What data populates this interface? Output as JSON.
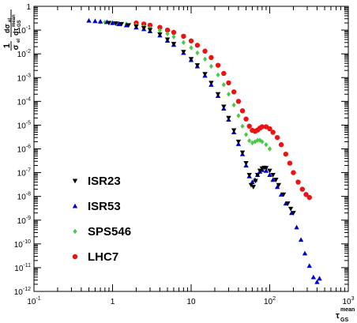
{
  "chart_data": {
    "type": "scatter",
    "title": "",
    "xscale": "log",
    "yscale": "log",
    "xlim": [
      0.1,
      1000
    ],
    "ylim": [
      1e-12,
      1
    ],
    "grid": false,
    "legend_position": "bottom-left",
    "xlabel": {
      "symbol": "τ",
      "superscript": "mean",
      "subscript": "GS"
    },
    "ylabel": {
      "prefix_num": "1",
      "prefix_den": "σ",
      "prefix_den_sub": "el",
      "deriv_num": "dσ",
      "deriv_num_sub": "el",
      "deriv_den": "dτ",
      "deriv_den_sup": "mean",
      "deriv_den_sub": "GS"
    },
    "x_major_ticks": [
      {
        "value": 0.1,
        "mantissa": "10",
        "exp": "-1"
      },
      {
        "value": 1,
        "mantissa": "1",
        "exp": ""
      },
      {
        "value": 10,
        "mantissa": "10",
        "exp": ""
      },
      {
        "value": 100,
        "mantissa": "10",
        "exp": "2"
      },
      {
        "value": 1000,
        "mantissa": "10",
        "exp": "3"
      }
    ],
    "y_major_ticks": [
      {
        "value": 1,
        "mantissa": "1",
        "exp": ""
      },
      {
        "value": 0.1,
        "mantissa": "10",
        "exp": "-1"
      },
      {
        "value": 0.01,
        "mantissa": "10",
        "exp": "-2"
      },
      {
        "value": 0.001,
        "mantissa": "10",
        "exp": "-3"
      },
      {
        "value": 0.0001,
        "mantissa": "10",
        "exp": "-4"
      },
      {
        "value": 1e-05,
        "mantissa": "10",
        "exp": "-5"
      },
      {
        "value": 1e-06,
        "mantissa": "10",
        "exp": "-6"
      },
      {
        "value": 1e-07,
        "mantissa": "10",
        "exp": "-7"
      },
      {
        "value": 1e-08,
        "mantissa": "10",
        "exp": "-8"
      },
      {
        "value": 1e-09,
        "mantissa": "10",
        "exp": "-9"
      },
      {
        "value": 1e-10,
        "mantissa": "10",
        "exp": "-10"
      },
      {
        "value": 1e-11,
        "mantissa": "10",
        "exp": "-11"
      },
      {
        "value": 1e-12,
        "mantissa": "10",
        "exp": "-12"
      }
    ],
    "series": [
      {
        "name": "ISR23",
        "marker": "triangle-down",
        "color": "#000000",
        "points": [
          [
            0.9,
            0.2
          ],
          [
            1.1,
            0.19
          ],
          [
            1.3,
            0.18
          ],
          [
            1.6,
            0.16
          ],
          [
            2,
            0.14
          ],
          [
            2.5,
            0.12
          ],
          [
            3,
            0.1
          ],
          [
            4,
            0.065
          ],
          [
            5,
            0.04
          ],
          [
            6,
            0.026
          ],
          [
            8,
            0.012
          ],
          [
            10,
            0.006
          ],
          [
            12,
            0.0033
          ],
          [
            15,
            0.0014
          ],
          [
            18,
            0.0006
          ],
          [
            22,
            0.0002
          ],
          [
            26,
            6e-05
          ],
          [
            30,
            2e-05
          ],
          [
            35,
            6e-06
          ],
          [
            40,
            2e-06
          ],
          [
            45,
            7e-07
          ],
          [
            50,
            2.5e-07
          ],
          [
            55,
            8e-08
          ],
          [
            58,
            3e-08
          ],
          [
            62,
            2.5e-08
          ],
          [
            66,
            4.5e-08
          ],
          [
            70,
            8e-08
          ],
          [
            75,
            1.2e-07
          ],
          [
            80,
            1.5e-07
          ],
          [
            85,
            1.6e-07
          ],
          [
            90,
            1.55e-07
          ],
          [
            100,
            1.2e-07
          ],
          [
            110,
            8e-08
          ],
          [
            120,
            5e-08
          ],
          [
            130,
            3e-08
          ],
          [
            150,
            1.2e-08
          ],
          [
            170,
            5e-09
          ],
          [
            185,
            3e-09
          ],
          [
            200,
            2e-09
          ]
        ]
      },
      {
        "name": "ISR53",
        "marker": "triangle-up",
        "color": "#0000cc",
        "points": [
          [
            0.5,
            0.25
          ],
          [
            0.6,
            0.24
          ],
          [
            0.7,
            0.23
          ],
          [
            0.85,
            0.22
          ],
          [
            1,
            0.2
          ],
          [
            1.2,
            0.18
          ],
          [
            1.5,
            0.16
          ],
          [
            2,
            0.13
          ],
          [
            2.5,
            0.11
          ],
          [
            3,
            0.09
          ],
          [
            4,
            0.06
          ],
          [
            5,
            0.036
          ],
          [
            6,
            0.024
          ],
          [
            8,
            0.011
          ],
          [
            10,
            0.0055
          ],
          [
            12,
            0.003
          ],
          [
            15,
            0.0012
          ],
          [
            18,
            0.0005
          ],
          [
            22,
            0.00017
          ],
          [
            26,
            5e-05
          ],
          [
            30,
            1.7e-05
          ],
          [
            35,
            5e-06
          ],
          [
            40,
            1.6e-06
          ],
          [
            45,
            6e-07
          ],
          [
            50,
            2e-07
          ],
          [
            55,
            7e-08
          ],
          [
            60,
            4e-08
          ],
          [
            65,
            5e-08
          ],
          [
            70,
            8e-08
          ],
          [
            75,
            1.1e-07
          ],
          [
            80,
            1.3e-07
          ],
          [
            90,
            1.2e-07
          ],
          [
            100,
            8e-08
          ],
          [
            110,
            5e-08
          ],
          [
            125,
            2.5e-08
          ],
          [
            140,
            1.2e-08
          ],
          [
            160,
            5e-09
          ],
          [
            190,
            2e-09
          ],
          [
            220,
            5e-10
          ],
          [
            250,
            1.5e-10
          ],
          [
            280,
            4e-11
          ],
          [
            320,
            1.2e-11
          ],
          [
            360,
            4e-12
          ],
          [
            400,
            2.5e-12
          ],
          [
            430,
            3.5e-12
          ]
        ]
      },
      {
        "name": "SPS546",
        "marker": "diamond",
        "color": "#44cc44",
        "points": [
          [
            0.7,
            0.22
          ],
          [
            0.8,
            0.215
          ],
          [
            1,
            0.2
          ],
          [
            1.2,
            0.19
          ],
          [
            1.5,
            0.18
          ],
          [
            2,
            0.16
          ],
          [
            2.5,
            0.14
          ],
          [
            3,
            0.12
          ],
          [
            4,
            0.095
          ],
          [
            5,
            0.07
          ],
          [
            6,
            0.052
          ],
          [
            8,
            0.03
          ],
          [
            10,
            0.018
          ],
          [
            12,
            0.011
          ],
          [
            15,
            0.006
          ],
          [
            18,
            0.003
          ],
          [
            22,
            0.0013
          ],
          [
            26,
            0.0005
          ],
          [
            30,
            0.0002
          ],
          [
            35,
            7e-05
          ],
          [
            40,
            2.5e-05
          ],
          [
            45,
            9e-06
          ],
          [
            50,
            4e-06
          ],
          [
            55,
            2.2e-06
          ],
          [
            60,
            1.8e-06
          ],
          [
            65,
            2e-06
          ],
          [
            70,
            2.3e-06
          ],
          [
            75,
            2.3e-06
          ],
          [
            80,
            2e-06
          ],
          [
            90,
            1.5e-06
          ],
          [
            100,
            1e-06
          ]
        ]
      },
      {
        "name": "LHC7",
        "marker": "circle",
        "color": "#ee1111",
        "points": [
          [
            2,
            0.2
          ],
          [
            2.5,
            0.18
          ],
          [
            3,
            0.16
          ],
          [
            4,
            0.13
          ],
          [
            5,
            0.1
          ],
          [
            6,
            0.08
          ],
          [
            8,
            0.055
          ],
          [
            10,
            0.035
          ],
          [
            12,
            0.023
          ],
          [
            15,
            0.013
          ],
          [
            18,
            0.007
          ],
          [
            22,
            0.0033
          ],
          [
            26,
            0.0015
          ],
          [
            30,
            0.0006
          ],
          [
            35,
            0.00025
          ],
          [
            40,
            0.0001
          ],
          [
            45,
            4e-05
          ],
          [
            50,
            1.8e-05
          ],
          [
            55,
            9e-06
          ],
          [
            60,
            6e-06
          ],
          [
            65,
            5.5e-06
          ],
          [
            70,
            6.2e-06
          ],
          [
            75,
            7.5e-06
          ],
          [
            80,
            8.5e-06
          ],
          [
            90,
            8.5e-06
          ],
          [
            100,
            7e-06
          ],
          [
            110,
            5e-06
          ],
          [
            125,
            3e-06
          ],
          [
            140,
            1.5e-06
          ],
          [
            160,
            6e-07
          ],
          [
            180,
            2.5e-07
          ],
          [
            200,
            1e-07
          ],
          [
            230,
            4e-08
          ],
          [
            260,
            2e-08
          ],
          [
            290,
            1.2e-08
          ],
          [
            320,
            9e-09
          ]
        ]
      }
    ]
  }
}
